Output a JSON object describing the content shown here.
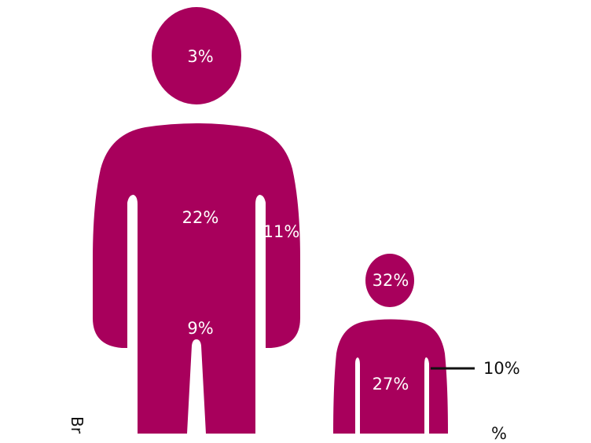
{
  "colors": {
    "figure": "#A8005C",
    "text_on_figure": "#FFFFFF",
    "leader_line": "#111111"
  },
  "adult": {
    "head": "3%",
    "torso": "22%",
    "arm": "11%",
    "legs": "9%"
  },
  "child": {
    "head": "32%",
    "torso": "27%",
    "arm": "10%",
    "partial_label": "%"
  },
  "side_text": "Br"
}
